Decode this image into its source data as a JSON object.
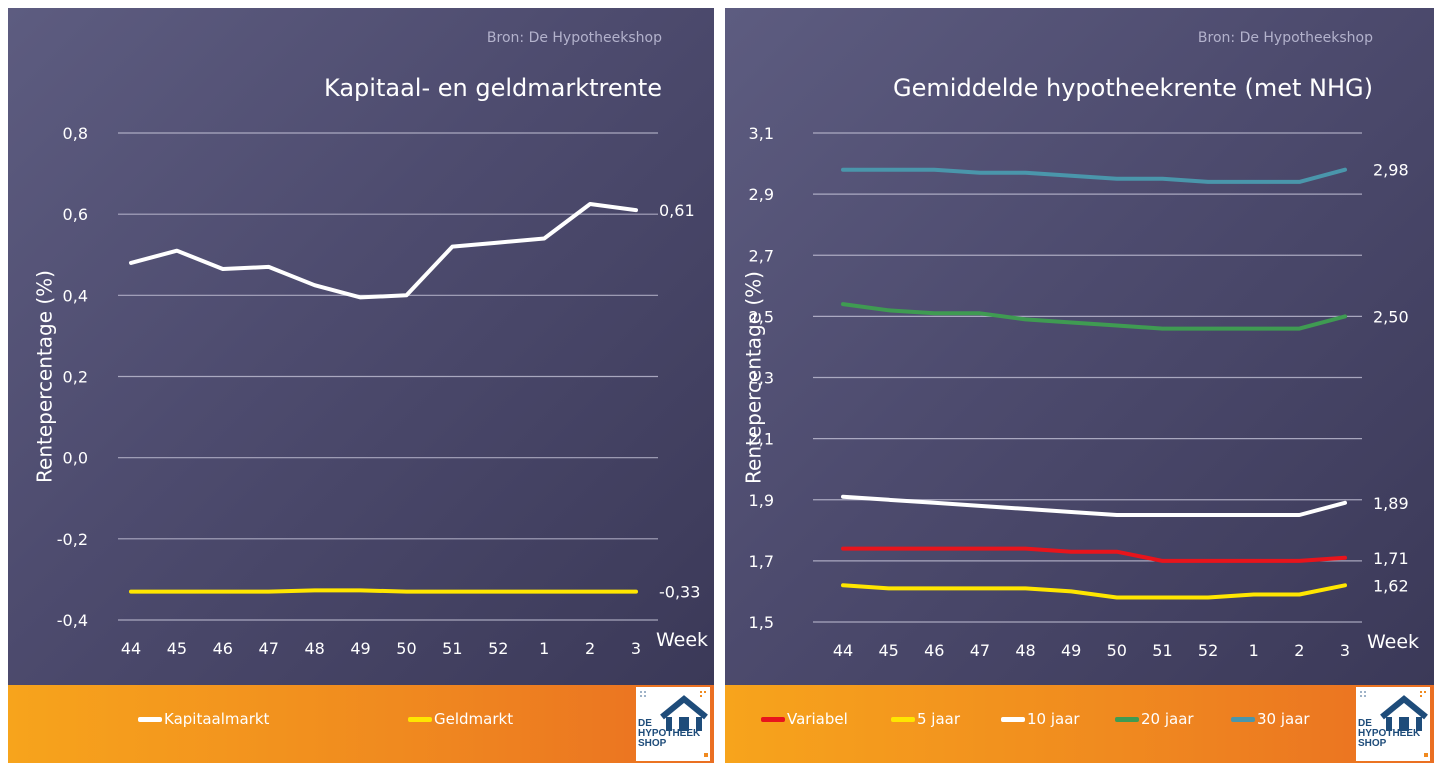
{
  "panels": [
    {
      "source": "Bron: De Hypotheekshop",
      "title": "Kapitaal- en geldmarktrente",
      "legend": [
        {
          "label": "Kapitaalmarkt",
          "color": "#ffffff"
        },
        {
          "label": "Geldmarkt",
          "color": "#ffe600"
        }
      ],
      "logo": {
        "lines": [
          "DE",
          "HYPOTHEEK",
          "SHOP"
        ],
        "icon": "house-icon"
      }
    },
    {
      "source": "Bron: De Hypotheekshop",
      "title": "Gemiddelde hypotheekrente (met NHG)",
      "legend": [
        {
          "label": "Variabel",
          "color": "#e8141c"
        },
        {
          "label": "5 jaar",
          "color": "#ffe600"
        },
        {
          "label": "10 jaar",
          "color": "#ffffff"
        },
        {
          "label": "20 jaar",
          "color": "#3f9b52"
        },
        {
          "label": "30 jaar",
          "color": "#4a96ab"
        }
      ],
      "logo": {
        "lines": [
          "DE",
          "HYPOTHEEK",
          "SHOP"
        ],
        "icon": "house-icon"
      }
    }
  ],
  "chart_data": [
    {
      "type": "line",
      "title": "Kapitaal- en geldmarktrente",
      "xlabel": "Week",
      "ylabel": "Rentepercentage (%)",
      "categories": [
        "44",
        "45",
        "46",
        "47",
        "48",
        "49",
        "50",
        "51",
        "52",
        "1",
        "2",
        "3"
      ],
      "ylim": [
        -0.4,
        0.8
      ],
      "yticks": [
        -0.4,
        -0.2,
        0.0,
        0.2,
        0.4,
        0.6,
        0.8
      ],
      "ytick_labels": [
        "-0,4",
        "-0,2",
        "0,0",
        "0,2",
        "0,4",
        "0,6",
        "0,8"
      ],
      "grid": true,
      "series": [
        {
          "name": "Kapitaalmarkt",
          "color": "#ffffff",
          "values": [
            0.48,
            0.51,
            0.465,
            0.47,
            0.425,
            0.395,
            0.4,
            0.52,
            0.53,
            0.54,
            0.625,
            0.61
          ],
          "end_label": "0,61"
        },
        {
          "name": "Geldmarkt",
          "color": "#ffe600",
          "values": [
            -0.33,
            -0.33,
            -0.33,
            -0.33,
            -0.327,
            -0.327,
            -0.33,
            -0.33,
            -0.33,
            -0.33,
            -0.33,
            -0.33
          ],
          "end_label": "-0,33"
        }
      ]
    },
    {
      "type": "line",
      "title": "Gemiddelde hypotheekrente (met NHG)",
      "xlabel": "Week",
      "ylabel": "Rentepercentage (%)",
      "categories": [
        "44",
        "45",
        "46",
        "47",
        "48",
        "49",
        "50",
        "51",
        "52",
        "1",
        "2",
        "3"
      ],
      "ylim": [
        1.5,
        3.1
      ],
      "yticks": [
        1.5,
        1.7,
        1.9,
        2.1,
        2.3,
        2.5,
        2.7,
        2.9,
        3.1
      ],
      "ytick_labels": [
        "1,5",
        "1,7",
        "1,9",
        "2,1",
        "2,3",
        "2,5",
        "2,7",
        "2,9",
        "3,1"
      ],
      "grid": true,
      "series": [
        {
          "name": "Variabel",
          "color": "#e8141c",
          "values": [
            1.74,
            1.74,
            1.74,
            1.74,
            1.74,
            1.73,
            1.73,
            1.7,
            1.7,
            1.7,
            1.7,
            1.71
          ],
          "end_label": "1,71"
        },
        {
          "name": "5 jaar",
          "color": "#ffe600",
          "values": [
            1.62,
            1.61,
            1.61,
            1.61,
            1.61,
            1.6,
            1.58,
            1.58,
            1.58,
            1.59,
            1.59,
            1.62
          ],
          "end_label": "1,62"
        },
        {
          "name": "10 jaar",
          "color": "#ffffff",
          "values": [
            1.91,
            1.9,
            1.89,
            1.88,
            1.87,
            1.86,
            1.85,
            1.85,
            1.85,
            1.85,
            1.85,
            1.89
          ],
          "end_label": "1,89"
        },
        {
          "name": "20 jaar",
          "color": "#3f9b52",
          "values": [
            2.54,
            2.52,
            2.51,
            2.51,
            2.49,
            2.48,
            2.47,
            2.46,
            2.46,
            2.46,
            2.46,
            2.5
          ],
          "end_label": "2,50"
        },
        {
          "name": "30 jaar",
          "color": "#4a96ab",
          "values": [
            2.98,
            2.98,
            2.98,
            2.97,
            2.97,
            2.96,
            2.95,
            2.95,
            2.94,
            2.94,
            2.94,
            2.98
          ],
          "end_label": "2,98"
        }
      ]
    }
  ]
}
